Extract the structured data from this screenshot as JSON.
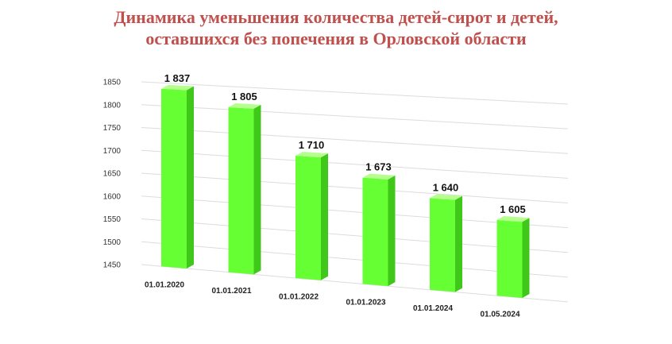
{
  "title_lines": [
    "Динамика уменьшения количества детей-сирот и детей,",
    "оставшихся без попечения в Орловской области"
  ],
  "colors": {
    "title": "#c0504d",
    "bar_front": "#66ff33",
    "bar_side": "#3fc71a",
    "bar_top": "#b6ff8f"
  },
  "chart_data": {
    "type": "bar",
    "title": "Динамика уменьшения количества детей-сирот и детей, оставшихся без попечения в Орловской области",
    "categories": [
      "01.01.2020",
      "01.01.2021",
      "01.01.2022",
      "01.01.2023",
      "01.01.2024",
      "01.05.2024"
    ],
    "values": [
      1837,
      1805,
      1710,
      1673,
      1640,
      1605
    ],
    "value_labels": [
      "1 837",
      "1 805",
      "1 710",
      "1 673",
      "1 640",
      "1 605"
    ],
    "y_ticks": [
      "1450",
      "1500",
      "1550",
      "1600",
      "1650",
      "1700",
      "1750",
      "1800",
      "1850"
    ],
    "ylim": [
      1450,
      1850
    ],
    "grid": true,
    "legend": "none"
  }
}
